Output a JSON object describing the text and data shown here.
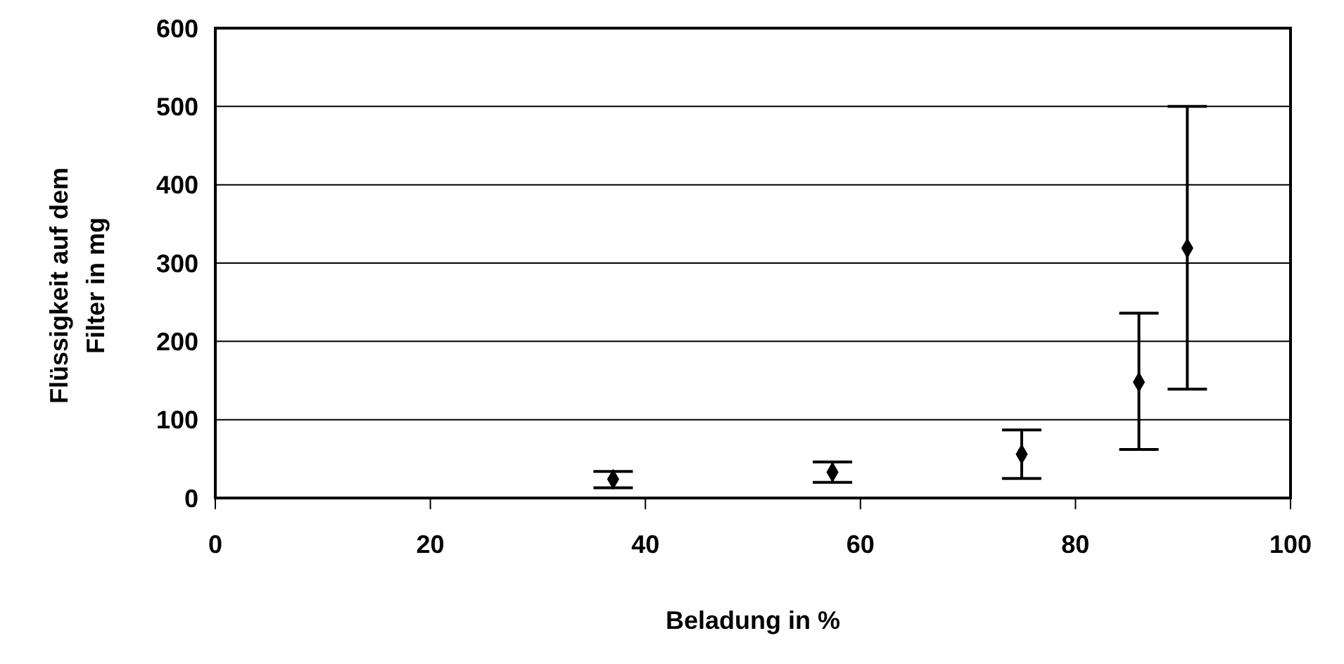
{
  "chart_data": {
    "type": "scatter",
    "xlabel": "Beladung in %",
    "ylabel": "Flüssigkeit auf dem Filter in mg",
    "x": [
      37,
      57.4,
      75,
      85.9,
      90.4
    ],
    "values": [
      24,
      33,
      56,
      148,
      319
    ],
    "errors": [
      [
        13,
        34
      ],
      [
        20,
        46
      ],
      [
        25,
        87
      ],
      [
        62,
        236
      ],
      [
        139,
        500
      ]
    ],
    "color": "#000000",
    "marker": "diamond",
    "xlim": [
      0,
      100
    ],
    "xticks": [
      0,
      20,
      40,
      60,
      80,
      100
    ],
    "ylim": [
      0,
      600
    ],
    "yticks": [
      0,
      100,
      200,
      300,
      400,
      500,
      600
    ],
    "grid": "y"
  }
}
